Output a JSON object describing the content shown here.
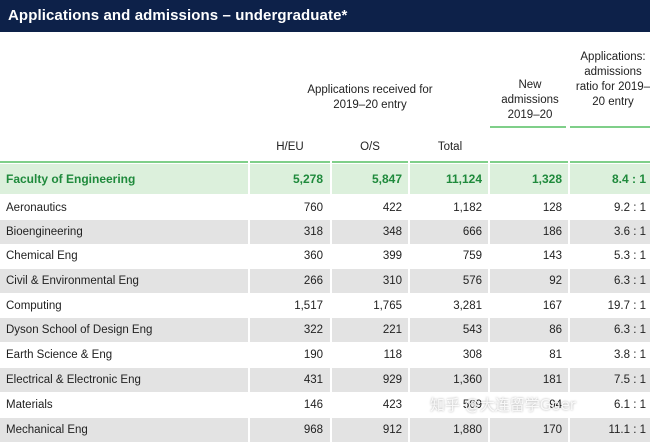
{
  "title": "Applications and admissions – undergraduate*",
  "headers": {
    "group": "Applications received for 2019–20 entry",
    "heu": "H/EU",
    "os": "O/S",
    "total": "Total",
    "new_admissions": "New admissions 2019–20",
    "ratio": "Applications: admissions ratio for 2019–20 entry"
  },
  "faculty": {
    "name": "Faculty of Engineering",
    "heu": "5,278",
    "os": "5,847",
    "total": "11,124",
    "new": "1,328",
    "ratio": "8.4 : 1"
  },
  "rows": [
    {
      "name": "Aeronautics",
      "heu": "760",
      "os": "422",
      "total": "1,182",
      "new": "128",
      "ratio": "9.2 : 1"
    },
    {
      "name": "Bioengineering",
      "heu": "318",
      "os": "348",
      "total": "666",
      "new": "186",
      "ratio": "3.6 : 1"
    },
    {
      "name": "Chemical Eng",
      "heu": "360",
      "os": "399",
      "total": "759",
      "new": "143",
      "ratio": "5.3 : 1"
    },
    {
      "name": "Civil & Environmental Eng",
      "heu": "266",
      "os": "310",
      "total": "576",
      "new": "92",
      "ratio": "6.3 : 1"
    },
    {
      "name": "Computing",
      "heu": "1,517",
      "os": "1,765",
      "total": "3,281",
      "new": "167",
      "ratio": "19.7 : 1"
    },
    {
      "name": "Dyson School of Design Eng",
      "heu": "322",
      "os": "221",
      "total": "543",
      "new": "86",
      "ratio": "6.3 : 1"
    },
    {
      "name": "Earth Science & Eng",
      "heu": "190",
      "os": "118",
      "total": "308",
      "new": "81",
      "ratio": "3.8 : 1"
    },
    {
      "name": "Electrical & Electronic Eng",
      "heu": "431",
      "os": "929",
      "total": "1,360",
      "new": "181",
      "ratio": "7.5 : 1"
    },
    {
      "name": "Materials",
      "heu": "146",
      "os": "423",
      "total": "569",
      "new": "94",
      "ratio": "6.1 : 1"
    },
    {
      "name": "Mechanical Eng",
      "heu": "968",
      "os": "912",
      "total": "1,880",
      "new": "170",
      "ratio": "11.1 : 1"
    }
  ],
  "watermark": "知乎 @大连留学Goer",
  "colors": {
    "title_bg": "#0d2149",
    "faculty_text": "#1f8a3c",
    "faculty_bg": "#dcf0dc",
    "rule": "#7fcf89",
    "stripe": "#e3e3e3"
  }
}
